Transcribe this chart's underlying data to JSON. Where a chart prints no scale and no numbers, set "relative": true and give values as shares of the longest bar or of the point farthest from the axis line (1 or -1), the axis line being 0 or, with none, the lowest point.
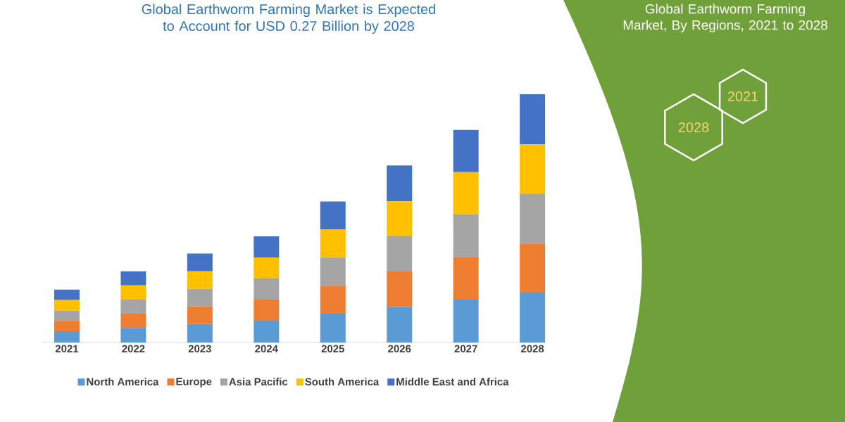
{
  "chart_data": {
    "type": "bar",
    "stacked": true,
    "relative": true,
    "legend": "bottom",
    "title": "Global Earthworm Farming Market is Expected to Account for USD 0.27 Billion by 2028",
    "annotations": [
      "Global Earthworm Farming Market, By Regions, 2021 to 2028",
      "2021",
      "2028"
    ],
    "categories": [
      "2021",
      "2022",
      "2023",
      "2024",
      "2025",
      "2026",
      "2027",
      "2028"
    ],
    "series": [
      {
        "name": "North America",
        "color": "#5b9bd5",
        "values": [
          0.045,
          0.059,
          0.074,
          0.088,
          0.116,
          0.144,
          0.173,
          0.201
        ]
      },
      {
        "name": "Europe",
        "color": "#ed7d31",
        "values": [
          0.042,
          0.057,
          0.071,
          0.085,
          0.113,
          0.142,
          0.17,
          0.198
        ]
      },
      {
        "name": "Asia Pacific",
        "color": "#a5a5a5",
        "values": [
          0.042,
          0.057,
          0.071,
          0.085,
          0.113,
          0.144,
          0.173,
          0.201
        ]
      },
      {
        "name": "South America",
        "color": "#ffc000",
        "values": [
          0.042,
          0.057,
          0.071,
          0.085,
          0.113,
          0.139,
          0.17,
          0.198
        ]
      },
      {
        "name": "Middle East and Africa",
        "color": "#4472c4",
        "values": [
          0.042,
          0.057,
          0.071,
          0.085,
          0.113,
          0.144,
          0.17,
          0.202
        ]
      }
    ]
  }
}
